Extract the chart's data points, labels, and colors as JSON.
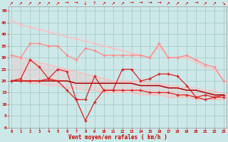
{
  "x": [
    0,
    1,
    2,
    3,
    4,
    5,
    6,
    7,
    8,
    9,
    10,
    11,
    12,
    13,
    14,
    15,
    16,
    17,
    18,
    19,
    20,
    21,
    22,
    23
  ],
  "line_max_rafales": [
    46,
    44,
    43,
    42,
    41,
    40,
    39,
    38,
    37,
    36,
    35,
    34,
    33,
    32,
    31,
    30,
    35,
    30,
    30,
    30,
    28,
    26,
    25,
    20
  ],
  "line_moy_rafales": [
    31,
    30,
    36,
    36,
    35,
    35,
    31,
    29,
    34,
    33,
    31,
    31,
    31,
    31,
    31,
    30,
    36,
    30,
    30,
    31,
    29,
    27,
    26,
    20
  ],
  "line_max_vent": [
    20,
    21,
    29,
    26,
    21,
    25,
    24,
    12,
    12,
    22,
    16,
    16,
    25,
    25,
    20,
    21,
    23,
    23,
    22,
    18,
    13,
    14,
    13,
    14
  ],
  "line_moy_vent": [
    20,
    20,
    20,
    20,
    20,
    20,
    20,
    19,
    19,
    19,
    19,
    19,
    19,
    19,
    18,
    18,
    18,
    17,
    17,
    16,
    16,
    15,
    14,
    14
  ],
  "line_min_vent": [
    20,
    20,
    20,
    20,
    21,
    20,
    16,
    12,
    3,
    11,
    16,
    16,
    16,
    16,
    16,
    15,
    15,
    15,
    14,
    14,
    13,
    12,
    13,
    13
  ],
  "line_trend_top": [
    31,
    30,
    29,
    28,
    27,
    26,
    25,
    24,
    23,
    22,
    21,
    20,
    20,
    20,
    20,
    19,
    19,
    18,
    18,
    17,
    17,
    16,
    16,
    14
  ],
  "line_trend_bot": [
    20,
    20,
    19,
    19,
    18,
    18,
    17,
    17,
    16,
    16,
    15,
    15,
    15,
    15,
    14,
    14,
    14,
    13,
    13,
    13,
    12,
    12,
    12,
    12
  ],
  "color_light": "#ffbbbb",
  "color_mid": "#ff8888",
  "color_dark": "#dd2222",
  "color_darkest": "#aa0000",
  "bg_color": "#cce8e8",
  "grid_color": "#aacccc",
  "xlabel": "Vent moyen/en rafales ( km/h )",
  "ylim": [
    0,
    52
  ],
  "xlim": [
    -0.3,
    23.3
  ],
  "yticks": [
    0,
    5,
    10,
    15,
    20,
    25,
    30,
    35,
    40,
    45,
    50
  ],
  "arrows": [
    "↗",
    "↗",
    "↗",
    "↗",
    "↗",
    "↗",
    "→",
    "→",
    "↓",
    "↑",
    "↗",
    "↗",
    "↗",
    "→",
    "→",
    "→",
    "→",
    "↗",
    "↗",
    "↗",
    "→",
    "↗",
    "↗",
    "↘"
  ]
}
